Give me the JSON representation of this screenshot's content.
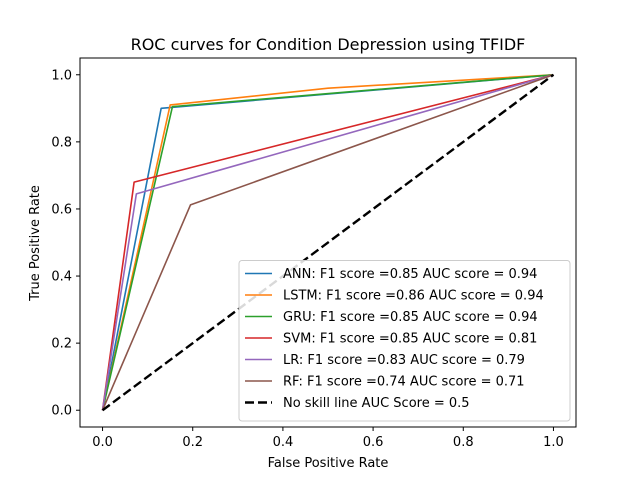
{
  "chart_data": {
    "type": "line",
    "title": "ROC curves for Condition Depression using TFIDF",
    "xlabel": "False Positive Rate",
    "ylabel": "True Positive Rate",
    "xlim": [
      -0.05,
      1.05
    ],
    "ylim": [
      -0.05,
      1.05
    ],
    "x_ticks": [
      0.0,
      0.2,
      0.4,
      0.6,
      0.8,
      1.0
    ],
    "y_ticks": [
      0.0,
      0.2,
      0.4,
      0.6,
      0.8,
      1.0
    ],
    "x_tick_labels": [
      "0.0",
      "0.2",
      "0.4",
      "0.6",
      "0.8",
      "1.0"
    ],
    "y_tick_labels": [
      "0.0",
      "0.2",
      "0.4",
      "0.6",
      "0.8",
      "1.0"
    ],
    "legend_position": "lower-right",
    "series": [
      {
        "name": "ANN: F1 score =0.85 AUC score = 0.94",
        "color": "#1f77b4",
        "style": "solid",
        "x": [
          0.0,
          0.13,
          1.0
        ],
        "y": [
          0.0,
          0.9,
          1.0
        ]
      },
      {
        "name": "LSTM: F1 score =0.86 AUC score = 0.94",
        "color": "#ff7f0e",
        "style": "solid",
        "x": [
          0.0,
          0.15,
          0.5,
          1.0
        ],
        "y": [
          0.0,
          0.91,
          0.96,
          1.0
        ]
      },
      {
        "name": "GRU: F1 score =0.85 AUC score = 0.94",
        "color": "#2ca02c",
        "style": "solid",
        "x": [
          0.0,
          0.155,
          1.0
        ],
        "y": [
          0.0,
          0.905,
          1.0
        ]
      },
      {
        "name": "SVM: F1 score =0.85 AUC score = 0.81",
        "color": "#d62728",
        "style": "solid",
        "x": [
          0.0,
          0.07,
          1.0
        ],
        "y": [
          0.0,
          0.68,
          1.0
        ]
      },
      {
        "name": "LR: F1 score =0.83 AUC score = 0.79",
        "color": "#9467bd",
        "style": "solid",
        "x": [
          0.0,
          0.075,
          1.0
        ],
        "y": [
          0.0,
          0.645,
          1.0
        ]
      },
      {
        "name": "RF: F1 score =0.74 AUC score = 0.71",
        "color": "#8c564b",
        "style": "solid",
        "x": [
          0.0,
          0.195,
          1.0
        ],
        "y": [
          0.0,
          0.612,
          1.0
        ]
      },
      {
        "name": "No skill line AUC Score = 0.5",
        "color": "#000000",
        "style": "dashed",
        "x": [
          0.0,
          1.0
        ],
        "y": [
          0.0,
          1.0
        ]
      }
    ]
  }
}
